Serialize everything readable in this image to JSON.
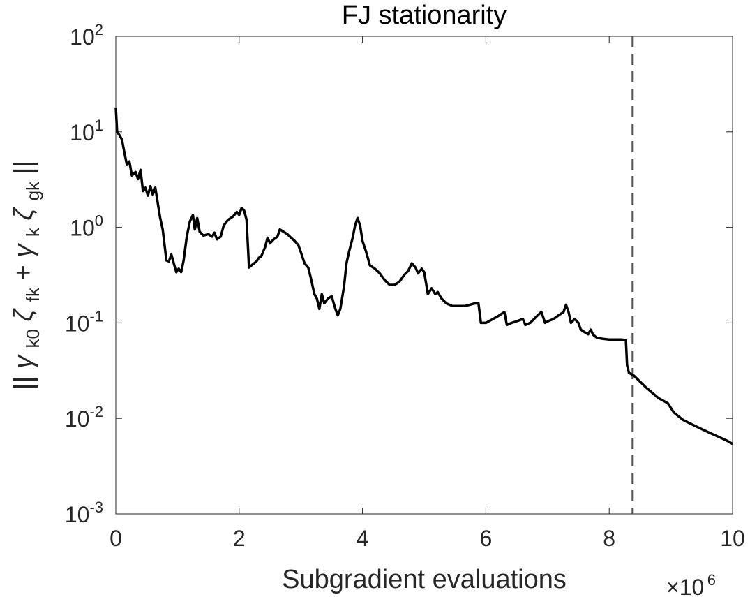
{
  "chart_data": {
    "type": "line",
    "title": "FJ stationarity",
    "xlabel": "Subgradient evaluations",
    "ylabel_parts": {
      "bars_open": "||",
      "gamma1": "γ",
      "sub1": "k0",
      "zeta1": "ζ",
      "sub2": "fk",
      "plus": "+",
      "gamma2": "γ",
      "sub3": "k",
      "zeta2": "ζ",
      "sub4": "gk",
      "bars_close": "||"
    },
    "x_multiplier": {
      "base": "×10",
      "exponent": "6"
    },
    "xlim": [
      0,
      10
    ],
    "ylim": [
      0.001,
      100
    ],
    "y_scale": "log",
    "grid": false,
    "box": true,
    "x_ticks": [
      {
        "value": 0,
        "label": "0"
      },
      {
        "value": 2,
        "label": "2"
      },
      {
        "value": 4,
        "label": "4"
      },
      {
        "value": 6,
        "label": "6"
      },
      {
        "value": 8,
        "label": "8"
      },
      {
        "value": 10,
        "label": "10"
      }
    ],
    "y_ticks": [
      {
        "value": 100,
        "base": "10",
        "exp": "2"
      },
      {
        "value": 10,
        "base": "10",
        "exp": "1"
      },
      {
        "value": 1,
        "base": "10",
        "exp": "0"
      },
      {
        "value": 0.1,
        "base": "10",
        "exp": "-1"
      },
      {
        "value": 0.01,
        "base": "10",
        "exp": "-2"
      },
      {
        "value": 0.001,
        "base": "10",
        "exp": "-3"
      }
    ],
    "vline": {
      "x": 8.38,
      "style": "dashed",
      "color": "#555555"
    },
    "series": [
      {
        "color": "#000000",
        "points": [
          [
            0.0,
            18.0
          ],
          [
            0.02,
            10.0
          ],
          [
            0.06,
            9.2
          ],
          [
            0.1,
            8.3
          ],
          [
            0.14,
            6.0
          ],
          [
            0.18,
            4.5
          ],
          [
            0.22,
            4.9
          ],
          [
            0.26,
            3.5
          ],
          [
            0.32,
            3.8
          ],
          [
            0.36,
            3.2
          ],
          [
            0.4,
            4.0
          ],
          [
            0.44,
            2.4
          ],
          [
            0.48,
            2.6
          ],
          [
            0.52,
            2.15
          ],
          [
            0.56,
            2.7
          ],
          [
            0.6,
            2.2
          ],
          [
            0.64,
            2.6
          ],
          [
            0.68,
            1.8
          ],
          [
            0.72,
            1.25
          ],
          [
            0.76,
            0.95
          ],
          [
            0.82,
            0.45
          ],
          [
            0.86,
            0.44
          ],
          [
            0.9,
            0.52
          ],
          [
            0.94,
            0.42
          ],
          [
            0.98,
            0.34
          ],
          [
            1.02,
            0.37
          ],
          [
            1.06,
            0.34
          ],
          [
            1.1,
            0.45
          ],
          [
            1.15,
            0.8
          ],
          [
            1.2,
            1.15
          ],
          [
            1.25,
            1.35
          ],
          [
            1.28,
            0.95
          ],
          [
            1.32,
            1.25
          ],
          [
            1.36,
            0.9
          ],
          [
            1.42,
            0.82
          ],
          [
            1.5,
            0.85
          ],
          [
            1.56,
            0.8
          ],
          [
            1.6,
            0.88
          ],
          [
            1.64,
            0.75
          ],
          [
            1.7,
            0.8
          ],
          [
            1.75,
            1.05
          ],
          [
            1.82,
            1.2
          ],
          [
            1.9,
            1.3
          ],
          [
            1.96,
            1.45
          ],
          [
            2.0,
            1.35
          ],
          [
            2.04,
            1.6
          ],
          [
            2.08,
            1.5
          ],
          [
            2.12,
            1.2
          ],
          [
            2.16,
            0.38
          ],
          [
            2.22,
            0.41
          ],
          [
            2.28,
            0.44
          ],
          [
            2.32,
            0.48
          ],
          [
            2.36,
            0.5
          ],
          [
            2.42,
            0.62
          ],
          [
            2.46,
            0.78
          ],
          [
            2.5,
            0.68
          ],
          [
            2.56,
            0.75
          ],
          [
            2.62,
            0.8
          ],
          [
            2.66,
            0.95
          ],
          [
            2.72,
            0.9
          ],
          [
            2.78,
            0.85
          ],
          [
            2.84,
            0.78
          ],
          [
            2.9,
            0.72
          ],
          [
            2.96,
            0.65
          ],
          [
            3.0,
            0.55
          ],
          [
            3.06,
            0.42
          ],
          [
            3.12,
            0.38
          ],
          [
            3.16,
            0.3
          ],
          [
            3.22,
            0.2
          ],
          [
            3.26,
            0.18
          ],
          [
            3.3,
            0.14
          ],
          [
            3.34,
            0.2
          ],
          [
            3.38,
            0.16
          ],
          [
            3.44,
            0.18
          ],
          [
            3.5,
            0.19
          ],
          [
            3.56,
            0.14
          ],
          [
            3.6,
            0.12
          ],
          [
            3.64,
            0.14
          ],
          [
            3.7,
            0.24
          ],
          [
            3.74,
            0.42
          ],
          [
            3.78,
            0.55
          ],
          [
            3.84,
            0.78
          ],
          [
            3.88,
            1.05
          ],
          [
            3.92,
            1.25
          ],
          [
            3.96,
            1.05
          ],
          [
            4.0,
            0.72
          ],
          [
            4.06,
            0.55
          ],
          [
            4.12,
            0.4
          ],
          [
            4.2,
            0.37
          ],
          [
            4.28,
            0.33
          ],
          [
            4.36,
            0.28
          ],
          [
            4.44,
            0.25
          ],
          [
            4.52,
            0.25
          ],
          [
            4.6,
            0.27
          ],
          [
            4.68,
            0.32
          ],
          [
            4.74,
            0.35
          ],
          [
            4.8,
            0.42
          ],
          [
            4.86,
            0.38
          ],
          [
            4.9,
            0.33
          ],
          [
            4.96,
            0.37
          ],
          [
            5.0,
            0.34
          ],
          [
            5.06,
            0.2
          ],
          [
            5.12,
            0.23
          ],
          [
            5.18,
            0.2
          ],
          [
            5.22,
            0.21
          ],
          [
            5.28,
            0.18
          ],
          [
            5.36,
            0.16
          ],
          [
            5.46,
            0.15
          ],
          [
            5.56,
            0.15
          ],
          [
            5.66,
            0.15
          ],
          [
            5.74,
            0.155
          ],
          [
            5.82,
            0.16
          ],
          [
            5.88,
            0.16
          ],
          [
            5.92,
            0.1
          ],
          [
            6.0,
            0.1
          ],
          [
            6.12,
            0.11
          ],
          [
            6.22,
            0.12
          ],
          [
            6.3,
            0.13
          ],
          [
            6.34,
            0.095
          ],
          [
            6.42,
            0.1
          ],
          [
            6.52,
            0.105
          ],
          [
            6.6,
            0.11
          ],
          [
            6.64,
            0.095
          ],
          [
            6.72,
            0.1
          ],
          [
            6.84,
            0.12
          ],
          [
            6.9,
            0.13
          ],
          [
            6.96,
            0.1
          ],
          [
            7.02,
            0.105
          ],
          [
            7.1,
            0.11
          ],
          [
            7.18,
            0.12
          ],
          [
            7.26,
            0.13
          ],
          [
            7.3,
            0.155
          ],
          [
            7.34,
            0.13
          ],
          [
            7.38,
            0.1
          ],
          [
            7.44,
            0.11
          ],
          [
            7.5,
            0.1
          ],
          [
            7.54,
            0.085
          ],
          [
            7.6,
            0.08
          ],
          [
            7.66,
            0.076
          ],
          [
            7.7,
            0.085
          ],
          [
            7.74,
            0.075
          ],
          [
            7.8,
            0.07
          ],
          [
            7.9,
            0.068
          ],
          [
            8.0,
            0.067
          ],
          [
            8.1,
            0.067
          ],
          [
            8.2,
            0.067
          ],
          [
            8.27,
            0.066
          ],
          [
            8.29,
            0.036
          ],
          [
            8.32,
            0.03
          ],
          [
            8.4,
            0.028
          ],
          [
            8.6,
            0.021
          ],
          [
            8.8,
            0.0163
          ],
          [
            8.95,
            0.0144
          ],
          [
            9.05,
            0.0115
          ],
          [
            9.2,
            0.0096
          ],
          [
            9.4,
            0.0083
          ],
          [
            9.6,
            0.0072
          ],
          [
            9.8,
            0.0063
          ],
          [
            9.92,
            0.0058
          ],
          [
            10.0,
            0.0054
          ]
        ]
      }
    ]
  }
}
